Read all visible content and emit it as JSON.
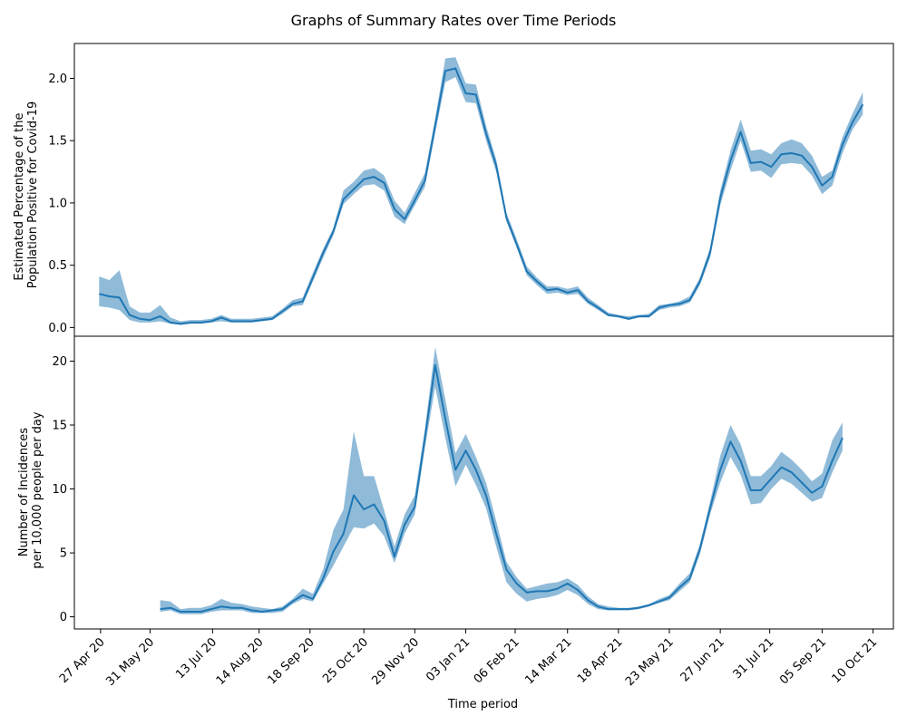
{
  "figure_title": "Graphs of Summary Rates over Time Periods",
  "colors": {
    "line": "#1f77b4",
    "band": "#1f77b4"
  },
  "chart_data": [
    {
      "type": "line",
      "shaded_band": true,
      "ylabel_line1": "Estimated Percentage of the",
      "ylabel_line2": "Population Positive for Covid-19",
      "ylim": [
        -0.07,
        2.28
      ],
      "yticks": [
        0.0,
        0.5,
        1.0,
        1.5,
        2.0
      ],
      "ytick_labels": [
        "0.0",
        "0.5",
        "1.0",
        "1.5",
        "2.0"
      ],
      "points": [
        [
          "2020-04-26",
          0.27,
          0.17,
          0.41
        ],
        [
          "2020-05-03",
          0.25,
          0.16,
          0.38
        ],
        [
          "2020-05-10",
          0.24,
          0.14,
          0.46
        ],
        [
          "2020-05-17",
          0.1,
          0.06,
          0.17
        ],
        [
          "2020-05-24",
          0.07,
          0.04,
          0.12
        ],
        [
          "2020-05-31",
          0.06,
          0.04,
          0.12
        ],
        [
          "2020-06-07",
          0.09,
          0.05,
          0.18
        ],
        [
          "2020-06-14",
          0.04,
          0.03,
          0.08
        ],
        [
          "2020-06-21",
          0.03,
          0.02,
          0.05
        ],
        [
          "2020-06-28",
          0.04,
          0.03,
          0.06
        ],
        [
          "2020-07-05",
          0.04,
          0.03,
          0.06
        ],
        [
          "2020-07-12",
          0.05,
          0.04,
          0.07
        ],
        [
          "2020-07-19",
          0.08,
          0.05,
          0.1
        ],
        [
          "2020-07-26",
          0.05,
          0.04,
          0.07
        ],
        [
          "2020-08-02",
          0.05,
          0.04,
          0.07
        ],
        [
          "2020-08-09",
          0.05,
          0.04,
          0.07
        ],
        [
          "2020-08-16",
          0.06,
          0.05,
          0.08
        ],
        [
          "2020-08-23",
          0.07,
          0.06,
          0.09
        ],
        [
          "2020-08-30",
          0.13,
          0.11,
          0.15
        ],
        [
          "2020-09-06",
          0.19,
          0.17,
          0.22
        ],
        [
          "2020-09-13",
          0.21,
          0.18,
          0.24
        ],
        [
          "2020-09-20",
          0.4,
          0.37,
          0.44
        ],
        [
          "2020-09-27",
          0.6,
          0.56,
          0.63
        ],
        [
          "2020-10-04",
          0.77,
          0.74,
          0.8
        ],
        [
          "2020-10-11",
          1.03,
          0.99,
          1.1
        ],
        [
          "2020-10-18",
          1.11,
          1.07,
          1.17
        ],
        [
          "2020-10-25",
          1.19,
          1.14,
          1.26
        ],
        [
          "2020-11-01",
          1.21,
          1.15,
          1.28
        ],
        [
          "2020-11-08",
          1.16,
          1.1,
          1.22
        ],
        [
          "2020-11-15",
          0.95,
          0.89,
          1.02
        ],
        [
          "2020-11-22",
          0.87,
          0.83,
          0.92
        ],
        [
          "2020-11-29",
          1.02,
          0.98,
          1.08
        ],
        [
          "2020-12-06",
          1.18,
          1.13,
          1.24
        ],
        [
          "2020-12-13",
          1.62,
          1.56,
          1.68
        ],
        [
          "2020-12-20",
          2.06,
          1.97,
          2.16
        ],
        [
          "2020-12-27",
          2.08,
          2.01,
          2.17
        ],
        [
          "2021-01-03",
          1.88,
          1.81,
          1.96
        ],
        [
          "2021-01-10",
          1.87,
          1.8,
          1.95
        ],
        [
          "2021-01-17",
          1.56,
          1.5,
          1.62
        ],
        [
          "2021-01-24",
          1.3,
          1.25,
          1.35
        ],
        [
          "2021-01-31",
          0.88,
          0.85,
          0.92
        ],
        [
          "2021-02-07",
          0.67,
          0.64,
          0.71
        ],
        [
          "2021-02-14",
          0.45,
          0.42,
          0.49
        ],
        [
          "2021-02-21",
          0.37,
          0.34,
          0.4
        ],
        [
          "2021-02-28",
          0.3,
          0.27,
          0.33
        ],
        [
          "2021-03-07",
          0.31,
          0.28,
          0.33
        ],
        [
          "2021-03-14",
          0.28,
          0.26,
          0.31
        ],
        [
          "2021-03-21",
          0.3,
          0.27,
          0.33
        ],
        [
          "2021-03-28",
          0.21,
          0.19,
          0.24
        ],
        [
          "2021-04-04",
          0.16,
          0.14,
          0.18
        ],
        [
          "2021-04-11",
          0.1,
          0.09,
          0.12
        ],
        [
          "2021-04-18",
          0.09,
          0.08,
          0.1
        ],
        [
          "2021-04-25",
          0.07,
          0.06,
          0.09
        ],
        [
          "2021-05-02",
          0.09,
          0.08,
          0.1
        ],
        [
          "2021-05-09",
          0.09,
          0.08,
          0.11
        ],
        [
          "2021-05-16",
          0.16,
          0.14,
          0.18
        ],
        [
          "2021-05-23",
          0.18,
          0.16,
          0.19
        ],
        [
          "2021-05-30",
          0.19,
          0.17,
          0.21
        ],
        [
          "2021-06-06",
          0.22,
          0.2,
          0.25
        ],
        [
          "2021-06-13",
          0.37,
          0.34,
          0.4
        ],
        [
          "2021-06-20",
          0.6,
          0.56,
          0.64
        ],
        [
          "2021-06-27",
          1.04,
          0.98,
          1.1
        ],
        [
          "2021-07-04",
          1.34,
          1.26,
          1.42
        ],
        [
          "2021-07-11",
          1.57,
          1.5,
          1.67
        ],
        [
          "2021-07-18",
          1.32,
          1.25,
          1.42
        ],
        [
          "2021-07-25",
          1.33,
          1.26,
          1.43
        ],
        [
          "2021-08-01",
          1.29,
          1.2,
          1.39
        ],
        [
          "2021-08-08",
          1.39,
          1.31,
          1.48
        ],
        [
          "2021-08-15",
          1.4,
          1.32,
          1.51
        ],
        [
          "2021-08-22",
          1.38,
          1.31,
          1.48
        ],
        [
          "2021-08-29",
          1.29,
          1.22,
          1.38
        ],
        [
          "2021-09-05",
          1.14,
          1.07,
          1.21
        ],
        [
          "2021-09-12",
          1.21,
          1.14,
          1.26
        ],
        [
          "2021-09-19",
          1.47,
          1.4,
          1.53
        ],
        [
          "2021-09-26",
          1.65,
          1.59,
          1.72
        ],
        [
          "2021-10-03",
          1.79,
          1.71,
          1.89
        ]
      ]
    },
    {
      "type": "line",
      "shaded_band": true,
      "ylabel_line1": "Number of Incidences",
      "ylabel_line2": "per 10,000 people per day",
      "ylim": [
        -0.95,
        21.95
      ],
      "yticks": [
        0,
        5,
        10,
        15,
        20
      ],
      "ytick_labels": [
        "0",
        "5",
        "10",
        "15",
        "20"
      ],
      "points": [
        [
          "2020-06-07",
          0.6,
          0.4,
          1.3
        ],
        [
          "2020-06-14",
          0.7,
          0.5,
          1.2
        ],
        [
          "2020-06-21",
          0.4,
          0.2,
          0.6
        ],
        [
          "2020-06-28",
          0.4,
          0.2,
          0.7
        ],
        [
          "2020-07-05",
          0.4,
          0.2,
          0.7
        ],
        [
          "2020-07-12",
          0.6,
          0.4,
          0.9
        ],
        [
          "2020-07-19",
          0.8,
          0.5,
          1.4
        ],
        [
          "2020-07-26",
          0.7,
          0.5,
          1.1
        ],
        [
          "2020-08-02",
          0.7,
          0.5,
          1.0
        ],
        [
          "2020-08-09",
          0.5,
          0.3,
          0.8
        ],
        [
          "2020-08-16",
          0.4,
          0.3,
          0.7
        ],
        [
          "2020-08-23",
          0.5,
          0.3,
          0.6
        ],
        [
          "2020-08-30",
          0.6,
          0.4,
          0.8
        ],
        [
          "2020-09-06",
          1.2,
          1.0,
          1.4
        ],
        [
          "2020-09-13",
          1.7,
          1.4,
          2.2
        ],
        [
          "2020-09-20",
          1.4,
          1.2,
          1.8
        ],
        [
          "2020-09-27",
          3.0,
          2.6,
          3.7
        ],
        [
          "2020-10-04",
          5.1,
          4.0,
          6.8
        ],
        [
          "2020-10-11",
          6.5,
          5.5,
          8.4
        ],
        [
          "2020-10-18",
          9.5,
          7.0,
          14.5
        ],
        [
          "2020-10-25",
          8.4,
          6.9,
          11.0
        ],
        [
          "2020-11-01",
          8.8,
          7.3,
          11.0
        ],
        [
          "2020-11-08",
          7.5,
          6.3,
          8.3
        ],
        [
          "2020-11-15",
          4.7,
          4.2,
          5.5
        ],
        [
          "2020-11-22",
          7.2,
          6.5,
          8.0
        ],
        [
          "2020-11-29",
          8.6,
          8.0,
          9.5
        ],
        [
          "2020-12-06",
          14.0,
          13.2,
          14.7
        ],
        [
          "2020-12-13",
          19.7,
          18.0,
          21.1
        ],
        [
          "2020-12-20",
          15.5,
          14.0,
          17.0
        ],
        [
          "2020-12-27",
          11.5,
          10.2,
          12.8
        ],
        [
          "2021-01-03",
          13.0,
          11.9,
          14.3
        ],
        [
          "2021-01-10",
          11.5,
          10.3,
          12.5
        ],
        [
          "2021-01-17",
          9.5,
          8.5,
          10.5
        ],
        [
          "2021-01-24",
          6.5,
          5.5,
          7.5
        ],
        [
          "2021-01-31",
          3.7,
          2.7,
          4.3
        ],
        [
          "2021-02-07",
          2.6,
          1.8,
          3.1
        ],
        [
          "2021-02-14",
          1.9,
          1.2,
          2.2
        ],
        [
          "2021-02-21",
          2.0,
          1.4,
          2.4
        ],
        [
          "2021-02-28",
          2.0,
          1.5,
          2.6
        ],
        [
          "2021-03-07",
          2.2,
          1.7,
          2.7
        ],
        [
          "2021-03-14",
          2.6,
          2.1,
          3.0
        ],
        [
          "2021-03-21",
          2.1,
          1.7,
          2.5
        ],
        [
          "2021-03-28",
          1.3,
          1.0,
          1.6
        ],
        [
          "2021-04-04",
          0.8,
          0.6,
          1.0
        ],
        [
          "2021-04-11",
          0.6,
          0.5,
          0.8
        ],
        [
          "2021-04-18",
          0.6,
          0.5,
          0.7
        ],
        [
          "2021-04-25",
          0.6,
          0.5,
          0.7
        ],
        [
          "2021-05-02",
          0.7,
          0.6,
          0.8
        ],
        [
          "2021-05-09",
          0.9,
          0.8,
          1.0
        ],
        [
          "2021-05-16",
          1.2,
          1.1,
          1.4
        ],
        [
          "2021-05-23",
          1.5,
          1.3,
          1.7
        ],
        [
          "2021-05-30",
          2.3,
          2.0,
          2.6
        ],
        [
          "2021-06-06",
          3.0,
          2.7,
          3.4
        ],
        [
          "2021-06-13",
          5.3,
          4.9,
          5.7
        ],
        [
          "2021-06-20",
          8.5,
          8.0,
          9.0
        ],
        [
          "2021-06-27",
          11.5,
          10.5,
          12.6
        ],
        [
          "2021-07-04",
          13.7,
          12.5,
          15.0
        ],
        [
          "2021-07-11",
          12.2,
          11.1,
          13.5
        ],
        [
          "2021-07-18",
          9.9,
          8.8,
          11.0
        ],
        [
          "2021-07-25",
          9.9,
          8.9,
          11.0
        ],
        [
          "2021-08-01",
          10.8,
          10.0,
          11.8
        ],
        [
          "2021-08-08",
          11.7,
          10.8,
          12.9
        ],
        [
          "2021-08-15",
          11.3,
          10.4,
          12.3
        ],
        [
          "2021-08-22",
          10.5,
          9.7,
          11.5
        ],
        [
          "2021-08-29",
          9.7,
          9.0,
          10.6
        ],
        [
          "2021-09-05",
          10.2,
          9.3,
          11.2
        ],
        [
          "2021-09-12",
          12.2,
          11.3,
          13.8
        ],
        [
          "2021-09-19",
          14.0,
          13.0,
          15.2
        ]
      ]
    }
  ],
  "x_axis": {
    "label": "Time period",
    "range": [
      "2020-04-09",
      "2021-10-24"
    ],
    "ticks": [
      [
        "2020-04-27",
        "27 Apr 20"
      ],
      [
        "2020-05-31",
        "31 May 20"
      ],
      [
        "2020-07-13",
        "13 Jul 20"
      ],
      [
        "2020-08-14",
        "14 Aug 20"
      ],
      [
        "2020-09-18",
        "18 Sep 20"
      ],
      [
        "2020-10-25",
        "25 Oct 20"
      ],
      [
        "2020-11-29",
        "29 Nov 20"
      ],
      [
        "2021-01-03",
        "03 Jan 21"
      ],
      [
        "2021-02-06",
        "06 Feb 21"
      ],
      [
        "2021-03-14",
        "14 Mar 21"
      ],
      [
        "2021-04-18",
        "18 Apr 21"
      ],
      [
        "2021-05-23",
        "23 May 21"
      ],
      [
        "2021-06-27",
        "27 Jun 21"
      ],
      [
        "2021-07-31",
        "31 Jul 21"
      ],
      [
        "2021-09-05",
        "05 Sep 21"
      ],
      [
        "2021-10-10",
        "10 Oct 21"
      ]
    ]
  }
}
